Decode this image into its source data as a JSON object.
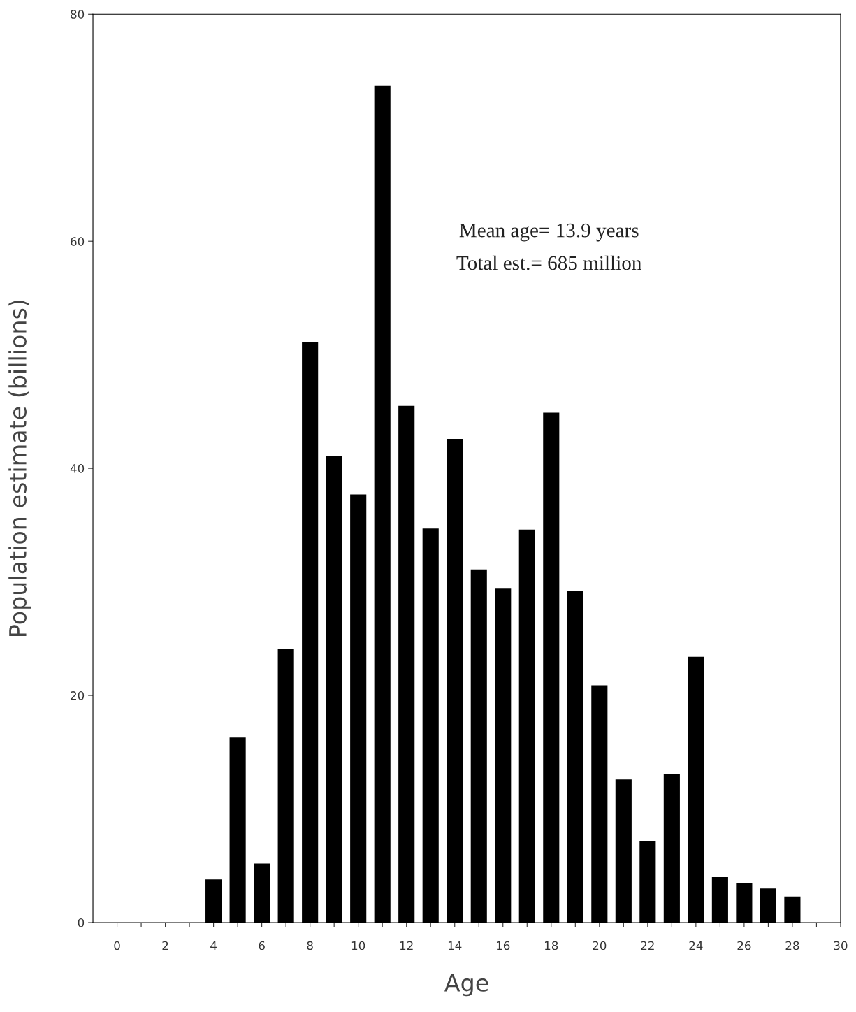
{
  "chart_data": {
    "type": "bar",
    "xlabel": "Age",
    "ylabel": "Population estimate (billions)",
    "annotations": [
      "Mean age= 13.9 years",
      "Total est.= 685 million"
    ],
    "x": [
      4,
      5,
      6,
      7,
      8,
      9,
      10,
      11,
      12,
      13,
      14,
      15,
      16,
      17,
      18,
      19,
      20,
      21,
      22,
      23,
      24,
      25,
      26,
      27,
      28
    ],
    "values": [
      3.8,
      16.3,
      5.2,
      24.1,
      51.1,
      41.1,
      37.7,
      73.7,
      45.5,
      34.7,
      42.6,
      31.1,
      29.4,
      34.6,
      44.9,
      29.2,
      20.9,
      12.6,
      7.2,
      13.1,
      23.4,
      4.0,
      3.5,
      3.0,
      2.3
    ],
    "color": "#000000",
    "xlim": [
      -1,
      30
    ],
    "xticks": [
      0,
      {
        "value": 1,
        "label": null
      },
      2,
      {
        "value": 3,
        "label": null
      },
      4,
      {
        "value": 5,
        "label": null
      },
      6,
      {
        "value": 7,
        "label": null
      },
      8,
      {
        "value": 9,
        "label": null
      },
      10,
      {
        "value": 11,
        "label": null
      },
      12,
      {
        "value": 13,
        "label": null
      },
      14,
      {
        "value": 15,
        "label": null
      },
      16,
      {
        "value": 17,
        "label": null
      },
      18,
      {
        "value": 19,
        "label": null
      },
      20,
      {
        "value": 21,
        "label": null
      },
      22,
      {
        "value": 23,
        "label": null
      },
      24,
      {
        "value": 25,
        "label": null
      },
      26,
      {
        "value": 27,
        "label": null
      },
      28,
      {
        "value": 29,
        "label": null
      },
      30
    ],
    "ylim": [
      0,
      80
    ],
    "yticks": [
      0,
      20,
      40,
      60,
      80
    ],
    "grid": false,
    "legend": false
  }
}
